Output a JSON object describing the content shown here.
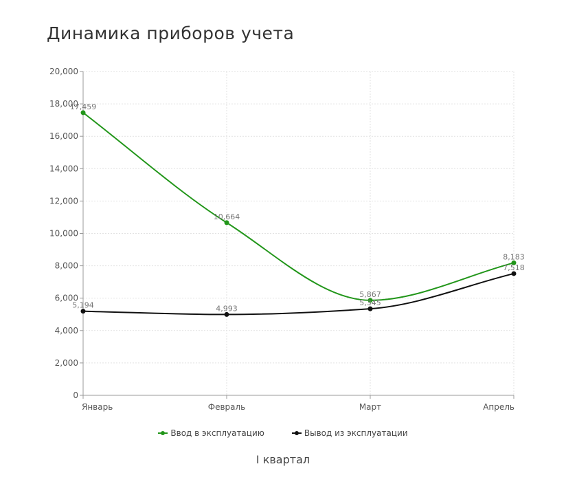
{
  "chart_data": {
    "type": "line",
    "title": "Динамика приборов учета",
    "xlabel": "I квартал",
    "ylabel": "",
    "categories": [
      "Январь",
      "Февраль",
      "Март",
      "Апрель"
    ],
    "ylim": [
      0,
      20000
    ],
    "yticks": [
      0,
      2000,
      4000,
      6000,
      8000,
      10000,
      12000,
      14000,
      16000,
      18000,
      20000
    ],
    "ytick_labels": [
      "0",
      "2,000",
      "4,000",
      "6,000",
      "8,000",
      "10,000",
      "12,000",
      "14,000",
      "16,000",
      "18,000",
      "20,000"
    ],
    "grid": true,
    "legend_position": "bottom",
    "series": [
      {
        "name": "Ввод в эксплуатацию",
        "color": "#22961a",
        "values": [
          17459,
          10664,
          5867,
          8183
        ],
        "labels": [
          "17,459",
          "10,664",
          "5,867",
          "8,183"
        ]
      },
      {
        "name": "Вывод из эксплуатации",
        "color": "#111111",
        "values": [
          5194,
          4993,
          5345,
          7518
        ],
        "labels": [
          "5,194",
          "4,993",
          "5,345",
          "7,518"
        ]
      }
    ]
  }
}
